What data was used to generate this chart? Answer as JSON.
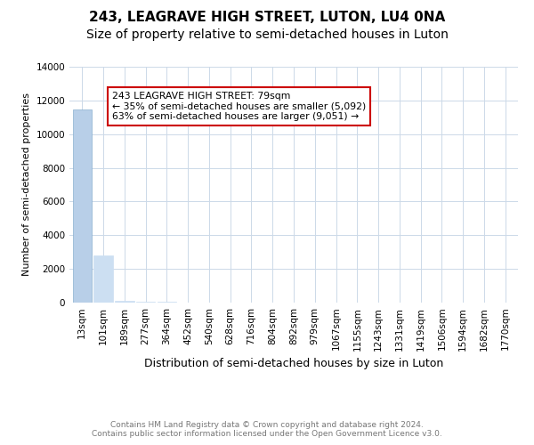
{
  "title": "243, LEAGRAVE HIGH STREET, LUTON, LU4 0NA",
  "subtitle": "Size of property relative to semi-detached houses in Luton",
  "xlabel": "Distribution of semi-detached houses by size in Luton",
  "ylabel": "Number of semi-detached properties",
  "bar_labels": [
    "13sqm",
    "101sqm",
    "189sqm",
    "277sqm",
    "364sqm",
    "452sqm",
    "540sqm",
    "628sqm",
    "716sqm",
    "804sqm",
    "892sqm",
    "979sqm",
    "1067sqm",
    "1155sqm",
    "1243sqm",
    "1331sqm",
    "1419sqm",
    "1506sqm",
    "1594sqm",
    "1682sqm",
    "1770sqm"
  ],
  "bar_values": [
    11450,
    2780,
    130,
    60,
    30,
    15,
    10,
    8,
    5,
    4,
    3,
    3,
    2,
    2,
    2,
    1,
    1,
    1,
    1,
    1,
    1
  ],
  "highlight_bar": 0,
  "highlight_color": "#b8cfe8",
  "normal_color": "#ccdff2",
  "ylim": [
    0,
    14000
  ],
  "yticks": [
    0,
    2000,
    4000,
    6000,
    8000,
    10000,
    12000,
    14000
  ],
  "annotation_text": "243 LEAGRAVE HIGH STREET: 79sqm\n← 35% of semi-detached houses are smaller (5,092)\n63% of semi-detached houses are larger (9,051) →",
  "annotation_color": "#cc0000",
  "footer_line1": "Contains HM Land Registry data © Crown copyright and database right 2024.",
  "footer_line2": "Contains public sector information licensed under the Open Government Licence v3.0.",
  "bg_color": "#ffffff",
  "grid_color": "#ccd9e8",
  "title_fontsize": 11,
  "subtitle_fontsize": 10,
  "ylabel_fontsize": 8,
  "xlabel_fontsize": 9,
  "tick_fontsize": 7.5,
  "footer_fontsize": 6.5
}
